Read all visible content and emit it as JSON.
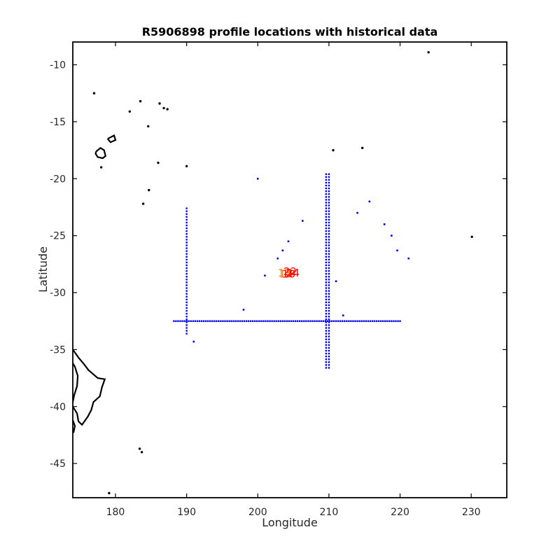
{
  "chart_data": {
    "type": "scatter",
    "title": "R5906898 profile locations with historical data",
    "xlabel": "Longitude",
    "ylabel": "Latitude",
    "xlim": [
      174,
      235
    ],
    "ylim": [
      -48,
      -8
    ],
    "xticks": [
      180,
      190,
      200,
      210,
      220,
      230
    ],
    "yticks": [
      -10,
      -15,
      -20,
      -25,
      -30,
      -35,
      -40,
      -45
    ],
    "xtick_labels": [
      "180",
      "190",
      "200",
      "210",
      "220",
      "230"
    ],
    "ytick_labels": [
      "-10",
      "-15",
      "-20",
      "-25",
      "-30",
      "-35",
      "-40",
      "-45"
    ],
    "grid": false,
    "colors": {
      "historical": "#0000ff",
      "coastline": "#000000",
      "profiles_old": "#ff8800",
      "profiles_new": "#ff0000"
    },
    "historical_lines": [
      {
        "lon": 190.0,
        "lat_from": -33.6,
        "lat_to": -22.5,
        "step": 0.25
      },
      {
        "lon": 209.6,
        "lat_from": -36.6,
        "lat_to": -19.5,
        "step": 0.25
      },
      {
        "lon": 210.0,
        "lat_from": -36.6,
        "lat_to": -19.5,
        "step": 0.25
      },
      {
        "lat": -32.5,
        "lon_from": 188.2,
        "lon_to": 220.0,
        "step": 0.3
      }
    ],
    "historical_points": [
      [
        200.0,
        -20.0
      ],
      [
        198.0,
        -31.5
      ],
      [
        201.0,
        -28.5
      ],
      [
        202.8,
        -27.0
      ],
      [
        203.5,
        -26.3
      ],
      [
        204.3,
        -25.5
      ],
      [
        206.3,
        -23.7
      ],
      [
        211.0,
        -29.0
      ],
      [
        212.0,
        -32.0
      ],
      [
        214.0,
        -23.0
      ],
      [
        215.7,
        -22.0
      ],
      [
        217.8,
        -24.0
      ],
      [
        218.8,
        -25.0
      ],
      [
        219.6,
        -26.3
      ],
      [
        221.2,
        -27.0
      ],
      [
        191.0,
        -34.3
      ]
    ],
    "profile_labels": [
      {
        "text": "13",
        "lon": 202.8,
        "lat": -28.2,
        "group": "old"
      },
      {
        "text": "15",
        "lon": 203.0,
        "lat": -28.3,
        "group": "old"
      },
      {
        "text": "22",
        "lon": 203.6,
        "lat": -28.1,
        "group": "new"
      },
      {
        "text": "24",
        "lon": 204.0,
        "lat": -28.2,
        "group": "new"
      },
      {
        "text": "18",
        "lon": 203.4,
        "lat": -28.3,
        "group": "new"
      }
    ],
    "coastlines": [
      {
        "name": "new-zealand-north",
        "points": [
          [
            174.0,
            -35.0
          ],
          [
            174.8,
            -35.7
          ],
          [
            175.6,
            -36.3
          ],
          [
            176.2,
            -36.8
          ],
          [
            177.5,
            -37.5
          ],
          [
            178.5,
            -37.6
          ],
          [
            178.1,
            -38.3
          ],
          [
            177.8,
            -39.1
          ],
          [
            176.9,
            -39.6
          ],
          [
            176.6,
            -40.3
          ],
          [
            176.1,
            -40.9
          ],
          [
            175.3,
            -41.6
          ],
          [
            174.8,
            -41.3
          ],
          [
            174.6,
            -40.6
          ],
          [
            173.9,
            -39.9
          ],
          [
            174.2,
            -39.0
          ],
          [
            174.6,
            -38.2
          ],
          [
            174.7,
            -37.3
          ],
          [
            174.3,
            -36.5
          ],
          [
            174.0,
            -36.2
          ]
        ]
      },
      {
        "name": "new-zealand-south",
        "points": [
          [
            174.0,
            -41.2
          ],
          [
            174.3,
            -41.7
          ],
          [
            174.1,
            -42.3
          ],
          [
            174.0,
            -42.0
          ]
        ]
      },
      {
        "name": "tonga-fiji",
        "points": [
          [
            177.3,
            -17.6
          ],
          [
            177.9,
            -17.3
          ],
          [
            178.4,
            -17.5
          ],
          [
            178.6,
            -18.0
          ],
          [
            178.2,
            -18.2
          ],
          [
            177.5,
            -18.1
          ],
          [
            177.2,
            -17.8
          ],
          [
            177.3,
            -17.6
          ]
        ]
      },
      {
        "name": "vanua-levu",
        "points": [
          [
            178.9,
            -16.5
          ],
          [
            179.8,
            -16.2
          ],
          [
            180.0,
            -16.6
          ],
          [
            179.3,
            -16.8
          ],
          [
            178.9,
            -16.5
          ]
        ]
      }
    ],
    "islands": [
      [
        177.0,
        -12.5
      ],
      [
        182.0,
        -14.1
      ],
      [
        183.5,
        -13.2
      ],
      [
        184.6,
        -15.4
      ],
      [
        186.2,
        -13.4
      ],
      [
        186.8,
        -13.8
      ],
      [
        187.3,
        -13.9
      ],
      [
        190.0,
        -18.9
      ],
      [
        186.0,
        -18.6
      ],
      [
        178.0,
        -19.0
      ],
      [
        184.7,
        -21.0
      ],
      [
        183.9,
        -22.2
      ],
      [
        210.6,
        -17.5
      ],
      [
        214.7,
        -17.3
      ],
      [
        230.1,
        -25.1
      ],
      [
        183.4,
        -43.7
      ],
      [
        183.7,
        -44.0
      ],
      [
        179.1,
        -47.6
      ],
      [
        224.0,
        -8.9
      ]
    ]
  }
}
